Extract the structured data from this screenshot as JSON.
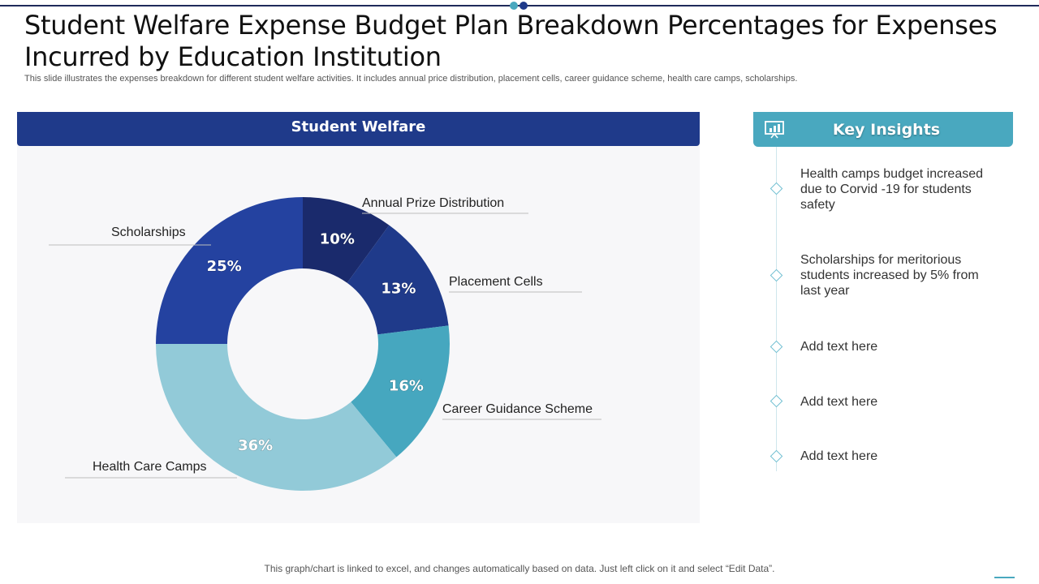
{
  "slide": {
    "title": "Student Welfare Expense Budget Plan Breakdown Percentages for Expenses Incurred by Education Institution",
    "subtitle": "This slide illustrates the expenses breakdown for different student welfare activities. It includes annual price distribution, placement cells, career guidance scheme, health care camps, scholarships.",
    "footer_note": "This graph/chart is linked to excel,  and changes automatically based on data. Just left click on it and select “Edit Data”."
  },
  "chart_data": {
    "type": "pie",
    "variant": "donut",
    "title": "Student Welfare",
    "categories": [
      "Annual Prize Distribution",
      "Placement Cells",
      "Career Guidance Scheme",
      "Health Care Camps",
      "Scholarships"
    ],
    "values": [
      10,
      13,
      16,
      36,
      25
    ],
    "value_labels": [
      "10%",
      "13%",
      "16%",
      "36%",
      "25%"
    ],
    "colors": [
      "#1a2a6c",
      "#1f3a8a",
      "#46a7bf",
      "#92cad8",
      "#2442a0"
    ],
    "legend": "none",
    "data_labels": "inside"
  },
  "insights": {
    "title": "Key Insights",
    "icon": "presentation-chart-icon",
    "items": [
      "Health camps budget increased due to Corvid -19 for students safety",
      "Scholarships for meritorious students increased by 5% from last year",
      "Add text here",
      "Add text here",
      "Add text here"
    ]
  },
  "colors": {
    "accent": "#1f3a8a",
    "insights_accent": "#49a8bf"
  }
}
